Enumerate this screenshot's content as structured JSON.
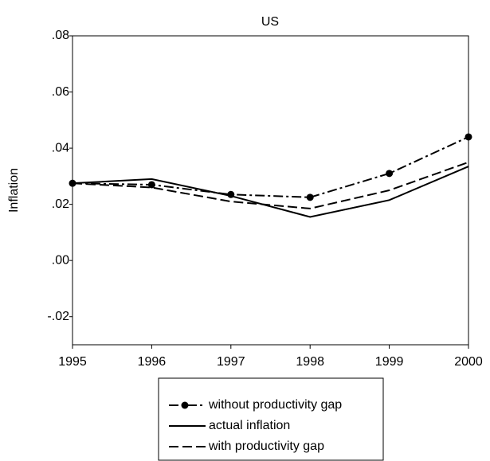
{
  "chart_data": {
    "type": "line",
    "title": "US",
    "y_label": "Inflation",
    "x": [
      1995,
      1996,
      1997,
      1998,
      1999,
      2000
    ],
    "xlim": [
      1995,
      2000
    ],
    "xticks": [
      1995,
      1996,
      1997,
      1998,
      1999,
      2000
    ],
    "ylim": [
      -0.03,
      0.08
    ],
    "yticks": [
      {
        "value": 0.08,
        "label": ".08"
      },
      {
        "value": 0.06,
        "label": ".06"
      },
      {
        "value": 0.04,
        "label": ".04"
      },
      {
        "value": 0.02,
        "label": ".02"
      },
      {
        "value": 0,
        "label": ".00"
      },
      {
        "value": -0.02,
        "label": "-.02"
      }
    ],
    "grid": false,
    "legend": "bottom",
    "series": [
      {
        "name": "without productivity gap",
        "color": "#000000",
        "style": "dashdot",
        "markers": true,
        "values": [
          0.0275,
          0.027,
          0.0235,
          0.0225,
          0.031,
          0.044
        ]
      },
      {
        "name": "actual inflation",
        "color": "#000000",
        "style": "solid",
        "markers": false,
        "values": [
          0.0275,
          0.029,
          0.023,
          0.0155,
          0.0215,
          0.0335
        ]
      },
      {
        "name": "with productivity gap",
        "color": "#000000",
        "style": "dashed",
        "markers": false,
        "values": [
          0.0275,
          0.026,
          0.021,
          0.0185,
          0.025,
          0.035
        ]
      }
    ]
  }
}
